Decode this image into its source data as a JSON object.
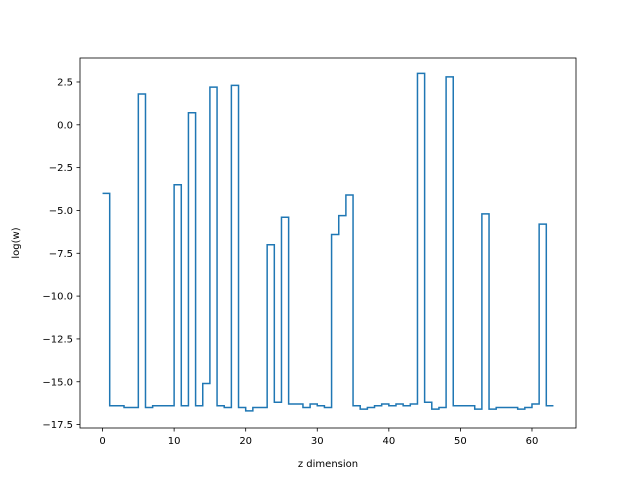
{
  "chart_data": {
    "type": "line",
    "drawstyle": "steps-post",
    "xlabel": "z dimension",
    "ylabel": "log(w)",
    "xlim": [
      -3.15,
      66.15
    ],
    "ylim": [
      -17.7,
      3.9
    ],
    "xticks": [
      0,
      10,
      20,
      30,
      40,
      50,
      60
    ],
    "xtick_labels": [
      "0",
      "10",
      "20",
      "30",
      "40",
      "50",
      "60"
    ],
    "yticks": [
      2.5,
      0.0,
      -2.5,
      -5.0,
      -7.5,
      -10.0,
      -12.5,
      -15.0,
      -17.5
    ],
    "ytick_labels": [
      "2.5",
      "0.0",
      "−2.5",
      "−5.0",
      "−7.5",
      "−10.0",
      "−12.5",
      "−15.0",
      "−17.5"
    ],
    "grid": false,
    "legend": false,
    "series": [
      {
        "color": "#1f77b4",
        "x": [
          0,
          1,
          2,
          3,
          4,
          5,
          6,
          7,
          8,
          9,
          10,
          11,
          12,
          13,
          14,
          15,
          16,
          17,
          18,
          19,
          20,
          21,
          22,
          23,
          24,
          25,
          26,
          27,
          28,
          29,
          30,
          31,
          32,
          33,
          34,
          35,
          36,
          37,
          38,
          39,
          40,
          41,
          42,
          43,
          44,
          45,
          46,
          47,
          48,
          49,
          50,
          51,
          52,
          53,
          54,
          55,
          56,
          57,
          58,
          59,
          60,
          61,
          62,
          63
        ],
        "values": [
          -4.0,
          -16.4,
          -16.4,
          -16.5,
          -16.5,
          1.8,
          -16.5,
          -16.4,
          -16.4,
          -16.4,
          -3.5,
          -16.4,
          0.7,
          -16.4,
          -15.1,
          2.2,
          -16.4,
          -16.5,
          2.3,
          -16.5,
          -16.7,
          -16.5,
          -16.5,
          -7.0,
          -16.2,
          -5.4,
          -16.3,
          -16.3,
          -16.5,
          -16.3,
          -16.4,
          -16.5,
          -6.4,
          -5.3,
          -4.1,
          -16.4,
          -16.6,
          -16.5,
          -16.4,
          -16.3,
          -16.4,
          -16.3,
          -16.4,
          -16.3,
          3.0,
          -16.2,
          -16.6,
          -16.5,
          2.8,
          -16.4,
          -16.4,
          -16.4,
          -16.6,
          -5.2,
          -16.6,
          -16.5,
          -16.5,
          -16.5,
          -16.6,
          -16.5,
          -16.3,
          -5.8,
          -16.4,
          -16.4
        ]
      }
    ]
  }
}
